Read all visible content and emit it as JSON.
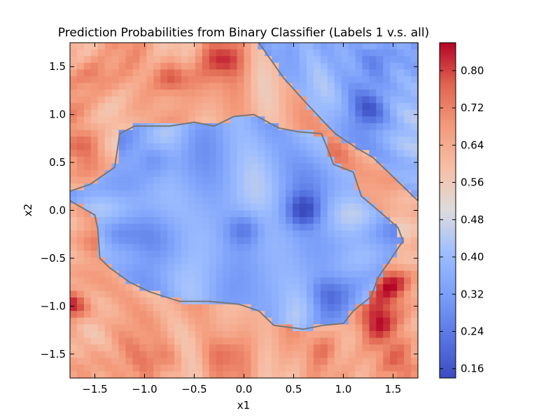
{
  "chart_data": {
    "type": "heatmap",
    "title": "Prediction Probabilities from Binary Classifier (Labels 1 v.s. all)",
    "xlabel": "x1",
    "ylabel": "x2",
    "xlim": [
      -1.75,
      1.75
    ],
    "ylim": [
      -1.75,
      1.75
    ],
    "x_ticks": [
      -1.5,
      -1.0,
      -0.5,
      0.0,
      0.5,
      1.0,
      1.5
    ],
    "x_tick_labels": [
      "−1.5",
      "−1.0",
      "−0.5",
      "0.0",
      "0.5",
      "1.0",
      "1.5"
    ],
    "y_ticks": [
      1.5,
      1.0,
      0.5,
      0.0,
      -0.5,
      -1.0,
      -1.5
    ],
    "y_tick_labels": [
      "1.5",
      "1.0",
      "0.5",
      "0.0",
      "−0.5",
      "−1.0",
      "−1.5"
    ],
    "colorbar": {
      "min": 0.14,
      "max": 0.86,
      "ticks": [
        0.8,
        0.72,
        0.64,
        0.56,
        0.48,
        0.4,
        0.32,
        0.24,
        0.16
      ],
      "tick_labels": [
        "0.80",
        "0.72",
        "0.64",
        "0.56",
        "0.48",
        "0.40",
        "0.32",
        "0.24",
        "0.16"
      ],
      "colormap": "coolwarm"
    },
    "contour_level": 0.5,
    "blue_regions": [
      {
        "name": "central",
        "boundary": [
          [
            -1.75,
            0.2
          ],
          [
            -1.55,
            0.27
          ],
          [
            -1.3,
            0.45
          ],
          [
            -1.25,
            0.8
          ],
          [
            -1.1,
            0.88
          ],
          [
            -0.75,
            0.88
          ],
          [
            -0.5,
            0.92
          ],
          [
            -0.3,
            0.88
          ],
          [
            -0.1,
            0.98
          ],
          [
            0.1,
            1.0
          ],
          [
            0.35,
            0.86
          ],
          [
            0.55,
            0.82
          ],
          [
            0.78,
            0.8
          ],
          [
            0.85,
            0.62
          ],
          [
            0.9,
            0.48
          ],
          [
            1.1,
            0.4
          ],
          [
            1.18,
            0.15
          ],
          [
            1.35,
            0.0
          ],
          [
            1.55,
            -0.18
          ],
          [
            1.6,
            -0.32
          ],
          [
            1.45,
            -0.55
          ],
          [
            1.35,
            -0.7
          ],
          [
            1.28,
            -0.9
          ],
          [
            1.1,
            -1.05
          ],
          [
            1.0,
            -1.18
          ],
          [
            0.8,
            -1.2
          ],
          [
            0.6,
            -1.24
          ],
          [
            0.3,
            -1.2
          ],
          [
            0.15,
            -1.05
          ],
          [
            -0.05,
            -0.98
          ],
          [
            -0.35,
            -0.95
          ],
          [
            -0.65,
            -0.95
          ],
          [
            -0.95,
            -0.85
          ],
          [
            -1.15,
            -0.75
          ],
          [
            -1.35,
            -0.6
          ],
          [
            -1.45,
            -0.5
          ],
          [
            -1.47,
            -0.2
          ],
          [
            -1.5,
            -0.05
          ],
          [
            -1.75,
            0.1
          ]
        ]
      },
      {
        "name": "upper-right",
        "boundary": [
          [
            0.15,
            1.75
          ],
          [
            0.4,
            1.38
          ],
          [
            0.6,
            1.15
          ],
          [
            0.78,
            0.95
          ],
          [
            0.92,
            0.8
          ],
          [
            1.12,
            0.66
          ],
          [
            1.3,
            0.55
          ],
          [
            1.55,
            0.3
          ],
          [
            1.75,
            0.1
          ],
          [
            1.75,
            1.75
          ]
        ]
      }
    ],
    "red_hotspots": [
      {
        "x": -0.7,
        "y": 1.38,
        "value": 0.84
      },
      {
        "x": -0.2,
        "y": 1.58,
        "value": 0.78
      },
      {
        "x": -1.5,
        "y": 1.4,
        "value": 0.74
      },
      {
        "x": -1.55,
        "y": 0.6,
        "value": 0.76
      },
      {
        "x": -1.72,
        "y": -1.0,
        "value": 0.84
      },
      {
        "x": 1.5,
        "y": -0.75,
        "value": 0.82
      },
      {
        "x": 1.3,
        "y": -1.15,
        "value": 0.8
      },
      {
        "x": 0.95,
        "y": 0.62,
        "value": 0.72
      },
      {
        "x": -0.8,
        "y": -1.55,
        "value": 0.74
      },
      {
        "x": 0.8,
        "y": -1.45,
        "value": 0.74
      },
      {
        "x": 1.6,
        "y": -1.6,
        "value": 0.74
      },
      {
        "x": -1.55,
        "y": -1.6,
        "value": 0.72
      },
      {
        "x": 1.45,
        "y": 0.2,
        "value": 0.7
      },
      {
        "x": -0.2,
        "y": -1.5,
        "value": 0.72
      }
    ],
    "blue_hotspots": [
      {
        "x": 0.6,
        "y": 0.0,
        "value": 0.16
      },
      {
        "x": 0.0,
        "y": -0.2,
        "value": 0.22
      },
      {
        "x": -0.9,
        "y": 0.55,
        "value": 0.24
      },
      {
        "x": 0.8,
        "y": -0.85,
        "value": 0.24
      },
      {
        "x": 1.35,
        "y": 1.6,
        "value": 0.24
      },
      {
        "x": 1.25,
        "y": 1.05,
        "value": 0.24
      },
      {
        "x": -1.3,
        "y": -0.3,
        "value": 0.26
      }
    ]
  }
}
